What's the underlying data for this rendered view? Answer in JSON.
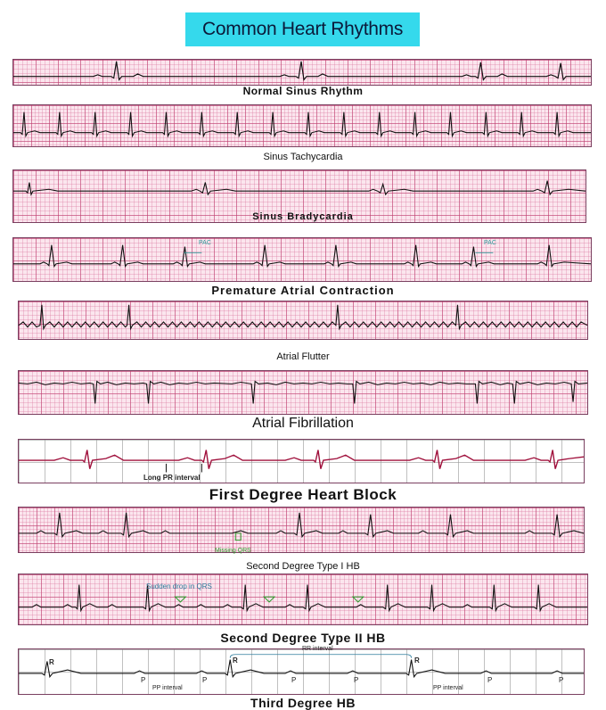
{
  "title": "Common Heart Rhythms",
  "rhythms": [
    {
      "name": "Normal Sinus Rhythm"
    },
    {
      "name": "Sinus Tachycardia"
    },
    {
      "name": "Sinus Bradycardia"
    },
    {
      "name": "Premature Atrial Contraction",
      "annotations": [
        "PAC",
        "PAC"
      ]
    },
    {
      "name": "Atrial Flutter"
    },
    {
      "name": "Atrial Fibrillation"
    },
    {
      "name": "First Degree Heart Block",
      "annotations": [
        "Long PR interval"
      ]
    },
    {
      "name": "Second Degree Type I HB",
      "annotations": [
        "Missing QRS"
      ]
    },
    {
      "name": "Second Degree Type II HB",
      "annotations": [
        "Sudden drop in QRS"
      ]
    },
    {
      "name": "Third Degree HB",
      "annotations": [
        "RR interval",
        "PP interval",
        "PP interval",
        "R",
        "R",
        "R",
        "P",
        "P",
        "P",
        "P",
        "P",
        "P"
      ]
    }
  ],
  "colors": {
    "title_bg": "#35d9ec",
    "grid_major": "#be3c6e",
    "grid_minor": "#dc78a0",
    "trace": "#111111",
    "annotation": "#2c9c2c",
    "first_degree_qrs": "#a0103c"
  }
}
